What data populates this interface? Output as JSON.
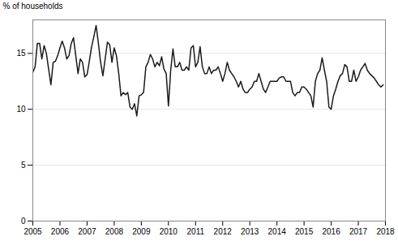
{
  "chart_data": {
    "type": "line",
    "ylabel": "% of households",
    "x": [
      2005.0,
      2005.083,
      2005.167,
      2005.25,
      2005.333,
      2005.417,
      2005.5,
      2005.583,
      2005.667,
      2005.75,
      2005.833,
      2005.917,
      2006.0,
      2006.083,
      2006.167,
      2006.25,
      2006.333,
      2006.417,
      2006.5,
      2006.583,
      2006.667,
      2006.75,
      2006.833,
      2006.917,
      2007.0,
      2007.083,
      2007.167,
      2007.25,
      2007.333,
      2007.417,
      2007.5,
      2007.583,
      2007.667,
      2007.75,
      2007.833,
      2007.917,
      2008.0,
      2008.083,
      2008.167,
      2008.25,
      2008.333,
      2008.417,
      2008.5,
      2008.583,
      2008.667,
      2008.75,
      2008.833,
      2008.917,
      2009.0,
      2009.083,
      2009.167,
      2009.25,
      2009.333,
      2009.417,
      2009.5,
      2009.583,
      2009.667,
      2009.75,
      2009.833,
      2009.917,
      2010.0,
      2010.083,
      2010.167,
      2010.25,
      2010.333,
      2010.417,
      2010.5,
      2010.583,
      2010.667,
      2010.75,
      2010.833,
      2010.917,
      2011.0,
      2011.083,
      2011.167,
      2011.25,
      2011.333,
      2011.417,
      2011.5,
      2011.583,
      2011.667,
      2011.75,
      2011.833,
      2011.917,
      2012.0,
      2012.083,
      2012.167,
      2012.25,
      2012.333,
      2012.417,
      2012.5,
      2012.583,
      2012.667,
      2012.75,
      2012.833,
      2012.917,
      2013.0,
      2013.083,
      2013.167,
      2013.25,
      2013.333,
      2013.417,
      2013.5,
      2013.583,
      2013.667,
      2013.75,
      2013.833,
      2013.917,
      2014.0,
      2014.083,
      2014.167,
      2014.25,
      2014.333,
      2014.417,
      2014.5,
      2014.583,
      2014.667,
      2014.75,
      2014.833,
      2014.917,
      2015.0,
      2015.083,
      2015.167,
      2015.25,
      2015.333,
      2015.417,
      2015.5,
      2015.583,
      2015.667,
      2015.75,
      2015.833,
      2015.917,
      2016.0,
      2016.083,
      2016.167,
      2016.25,
      2016.333,
      2016.417,
      2016.5,
      2016.583,
      2016.667,
      2016.75,
      2016.833,
      2016.917,
      2017.0,
      2017.083,
      2017.167,
      2017.25,
      2017.333,
      2017.417,
      2017.5,
      2017.583,
      2017.667,
      2017.75,
      2017.833,
      2017.917
    ],
    "values": [
      13.3,
      13.8,
      15.9,
      15.9,
      14.5,
      15.7,
      15.0,
      13.6,
      12.2,
      14.2,
      14.3,
      14.8,
      15.5,
      16.1,
      15.5,
      14.5,
      14.8,
      15.9,
      16.4,
      14.8,
      13.2,
      14.5,
      14.2,
      12.9,
      13.1,
      14.3,
      15.6,
      16.5,
      17.5,
      15.9,
      14.2,
      13.0,
      14.5,
      16.0,
      15.8,
      14.2,
      15.5,
      14.8,
      13.2,
      11.2,
      11.5,
      11.3,
      11.5,
      10.2,
      10.0,
      10.5,
      9.4,
      11.2,
      11.3,
      11.5,
      13.8,
      14.2,
      14.9,
      14.5,
      13.8,
      14.2,
      13.9,
      14.7,
      13.6,
      13.2,
      10.3,
      13.5,
      15.4,
      13.8,
      13.8,
      14.2,
      13.5,
      13.5,
      13.8,
      13.5,
      15.5,
      15.7,
      13.8,
      14.2,
      15.6,
      13.8,
      13.2,
      13.2,
      13.8,
      13.2,
      13.5,
      13.5,
      13.8,
      13.2,
      12.5,
      13.2,
      14.2,
      13.5,
      13.2,
      12.9,
      12.5,
      12.0,
      12.5,
      11.8,
      11.5,
      11.5,
      11.8,
      12.0,
      12.5,
      12.5,
      13.2,
      12.5,
      11.8,
      11.5,
      12.0,
      12.5,
      12.5,
      12.5,
      12.5,
      12.8,
      12.9,
      12.9,
      12.5,
      12.5,
      12.5,
      11.5,
      11.2,
      11.5,
      11.5,
      12.0,
      12.0,
      11.8,
      11.5,
      11.2,
      10.2,
      12.5,
      13.2,
      13.5,
      14.6,
      13.5,
      12.5,
      10.2,
      10.0,
      11.2,
      11.8,
      12.5,
      13.0,
      13.2,
      14.0,
      13.8,
      12.5,
      12.5,
      13.5,
      12.5,
      12.9,
      13.5,
      13.8,
      14.1,
      13.5,
      13.2,
      13.0,
      12.8,
      12.5,
      12.2,
      12.0,
      12.2
    ],
    "color": "#1a1a1a",
    "xlim": [
      2005.0,
      2018.0
    ],
    "xticks": [
      2005,
      2006,
      2007,
      2008,
      2009,
      2010,
      2011,
      2012,
      2013,
      2014,
      2015,
      2016,
      2017,
      2018
    ],
    "ylim": [
      0,
      18
    ],
    "yticks": [
      0,
      5,
      10,
      15
    ],
    "grid": true
  }
}
